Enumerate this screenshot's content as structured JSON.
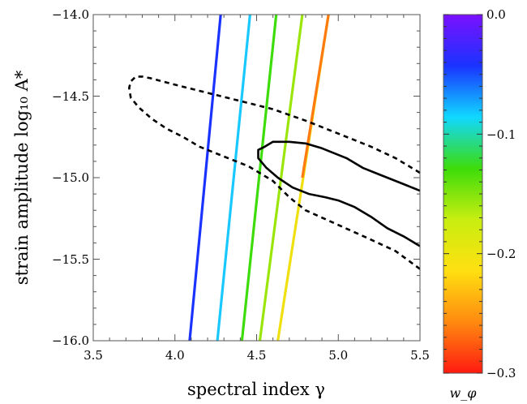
{
  "chart_data": {
    "type": "line",
    "xlabel": "spectral index γ",
    "ylabel": "strain amplitude log₁₀ A*",
    "xlim": [
      3.5,
      5.5
    ],
    "ylim": [
      -16.0,
      -14.0
    ],
    "xticks": [
      "3.5",
      "4.0",
      "4.5",
      "5.0",
      "5.5"
    ],
    "yticks": [
      "−16.0",
      "−15.5",
      "−15.0",
      "−14.5",
      "−14.0"
    ],
    "grid": false,
    "series": [
      {
        "style": "solid",
        "color": "#1a33ff",
        "points": [
          [
            4.09,
            -16.0
          ],
          [
            4.28,
            -14.0
          ]
        ],
        "w_phi": -0.05
      },
      {
        "style": "solid",
        "color": "#19c8ff",
        "points": [
          [
            4.26,
            -16.0
          ],
          [
            4.46,
            -14.0
          ]
        ],
        "w_phi": -0.1
      },
      {
        "style": "solid",
        "color": "#3ddc0a",
        "points": [
          [
            4.41,
            -16.0
          ],
          [
            4.62,
            -14.0
          ]
        ],
        "w_phi": -0.15
      },
      {
        "style": "solid",
        "color": "#9be60a",
        "points": [
          [
            4.52,
            -16.0
          ],
          [
            4.78,
            -14.0
          ]
        ],
        "w_phi": -0.18
      },
      {
        "style": "solid",
        "color": "#f0e010",
        "points": [
          [
            4.63,
            -16.0
          ],
          [
            4.94,
            -14.0
          ]
        ],
        "w_phi": -0.22
      },
      {
        "style": "solid",
        "color": "#ff7a10",
        "points": [
          [
            4.78,
            -15.0
          ],
          [
            4.94,
            -14.0
          ]
        ],
        "w_phi": -0.27
      },
      {
        "style": "dashed",
        "color": "#000000",
        "closed": false,
        "points": [
          [
            5.5,
            -14.97
          ],
          [
            5.35,
            -14.88
          ],
          [
            5.2,
            -14.81
          ],
          [
            5.0,
            -14.73
          ],
          [
            4.8,
            -14.65
          ],
          [
            4.6,
            -14.58
          ],
          [
            4.4,
            -14.53
          ],
          [
            4.2,
            -14.48
          ],
          [
            4.0,
            -14.43
          ],
          [
            3.85,
            -14.39
          ],
          [
            3.8,
            -14.38
          ],
          [
            3.76,
            -14.38
          ],
          [
            3.73,
            -14.41
          ],
          [
            3.72,
            -14.45
          ],
          [
            3.73,
            -14.51
          ],
          [
            3.78,
            -14.57
          ],
          [
            3.86,
            -14.64
          ],
          [
            3.95,
            -14.7
          ],
          [
            4.05,
            -14.75
          ],
          [
            4.15,
            -14.81
          ],
          [
            4.3,
            -14.87
          ],
          [
            4.45,
            -14.93
          ],
          [
            4.6,
            -15.02
          ],
          [
            4.7,
            -15.12
          ],
          [
            4.8,
            -15.2
          ],
          [
            5.0,
            -15.29
          ],
          [
            5.2,
            -15.38
          ],
          [
            5.35,
            -15.45
          ],
          [
            5.5,
            -15.56
          ]
        ]
      },
      {
        "style": "solid",
        "color": "#000000",
        "closed": false,
        "points": [
          [
            5.5,
            -15.08
          ],
          [
            5.4,
            -15.04
          ],
          [
            5.25,
            -14.98
          ],
          [
            5.15,
            -14.94
          ],
          [
            5.05,
            -14.88
          ],
          [
            4.9,
            -14.82
          ],
          [
            4.8,
            -14.79
          ],
          [
            4.7,
            -14.78
          ],
          [
            4.6,
            -14.78
          ],
          [
            4.55,
            -14.81
          ],
          [
            4.51,
            -14.83
          ],
          [
            4.51,
            -14.88
          ],
          [
            4.56,
            -14.94
          ],
          [
            4.63,
            -15.0
          ],
          [
            4.72,
            -15.06
          ],
          [
            4.82,
            -15.1
          ],
          [
            4.92,
            -15.12
          ],
          [
            5.0,
            -15.14
          ],
          [
            5.1,
            -15.18
          ],
          [
            5.2,
            -15.24
          ],
          [
            5.3,
            -15.31
          ],
          [
            5.4,
            -15.36
          ],
          [
            5.5,
            -15.42
          ]
        ]
      }
    ],
    "colorbar": {
      "label": "w_φ",
      "range": [
        -0.3,
        0.0
      ],
      "ticks": [
        "0.0",
        "−0.1",
        "−0.2",
        "−0.3"
      ],
      "stops": [
        "#7a10ff",
        "#1a33ff",
        "#10d8ff",
        "#3ddc0a",
        "#c8ee10",
        "#ffe010",
        "#ff8a10",
        "#ff1a10"
      ]
    }
  }
}
